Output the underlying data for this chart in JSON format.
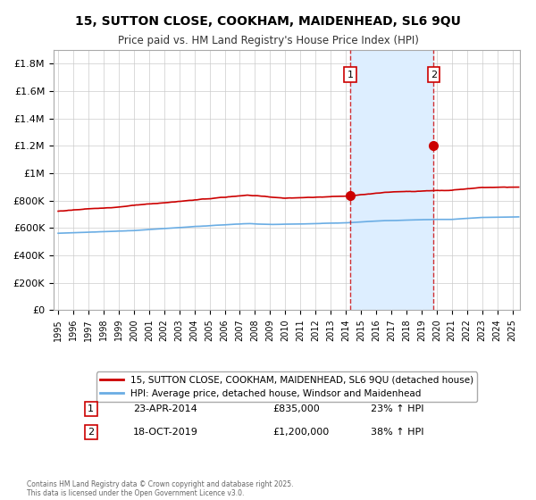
{
  "title1": "15, SUTTON CLOSE, COOKHAM, MAIDENHEAD, SL6 9QU",
  "title2": "Price paid vs. HM Land Registry's House Price Index (HPI)",
  "legend1": "15, SUTTON CLOSE, COOKHAM, MAIDENHEAD, SL6 9QU (detached house)",
  "legend2": "HPI: Average price, detached house, Windsor and Maidenhead",
  "annotation1_label": "1",
  "annotation1_date": "23-APR-2014",
  "annotation1_price": "£835,000",
  "annotation1_hpi": "23% ↑ HPI",
  "annotation2_label": "2",
  "annotation2_date": "18-OCT-2019",
  "annotation2_price": "£1,200,000",
  "annotation2_hpi": "38% ↑ HPI",
  "footer": "Contains HM Land Registry data © Crown copyright and database right 2025.\nThis data is licensed under the Open Government Licence v3.0.",
  "vline1_year": 2014.3,
  "vline2_year": 2019.8,
  "point1_x": 2014.3,
  "point1_y": 835000,
  "point2_x": 2019.8,
  "point2_y": 1200000,
  "hpi_color": "#6aade4",
  "price_color": "#cc0000",
  "bg_color": "#ffffff",
  "grid_color": "#cccccc",
  "shade_color": "#ddeeff",
  "ylim": [
    0,
    1900000
  ],
  "xlim_start": 1995,
  "xlim_end": 2025.5
}
